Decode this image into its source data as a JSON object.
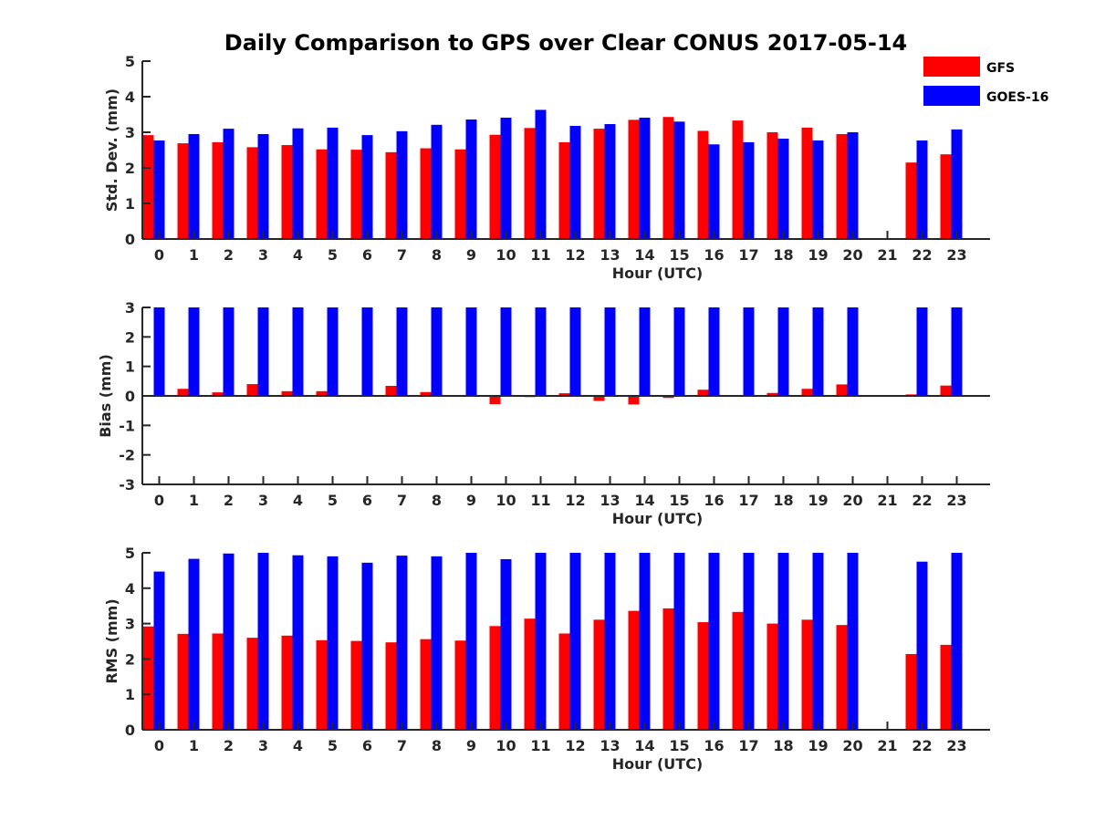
{
  "chart_data": {
    "type": "bar",
    "title": "Daily Comparison to GPS over Clear CONUS 2017-05-14",
    "legend": {
      "placement": "top-right",
      "entries": [
        {
          "name": "GFS",
          "color": "#ff0000"
        },
        {
          "name": "GOES-16",
          "color": "#0000ff"
        }
      ]
    },
    "categories": [
      "0",
      "1",
      "2",
      "3",
      "4",
      "5",
      "6",
      "7",
      "8",
      "9",
      "10",
      "11",
      "12",
      "13",
      "14",
      "15",
      "16",
      "17",
      "18",
      "19",
      "20",
      "21",
      "22",
      "23"
    ],
    "panels": [
      {
        "id": "std",
        "xlabel": "Hour (UTC)",
        "ylabel": "Std. Dev. (mm)",
        "ylim": [
          0,
          5
        ],
        "yticks": [
          0,
          1,
          2,
          3,
          4,
          5
        ],
        "ytick_labels": [
          "0",
          "1",
          "2",
          "3",
          "4",
          "5"
        ],
        "series": [
          {
            "name": "GFS",
            "color": "#ff0000",
            "values": [
              2.92,
              2.69,
              2.72,
              2.58,
              2.64,
              2.52,
              2.51,
              2.44,
              2.55,
              2.52,
              2.93,
              3.12,
              2.72,
              3.1,
              3.35,
              3.43,
              3.04,
              3.33,
              3.0,
              3.13,
              2.95,
              null,
              2.15,
              2.38
            ]
          },
          {
            "name": "GOES-16",
            "color": "#0000ff",
            "values": [
              2.77,
              2.95,
              3.1,
              2.95,
              3.11,
              3.13,
              2.92,
              3.03,
              3.21,
              3.36,
              3.41,
              3.63,
              3.18,
              3.23,
              3.41,
              3.3,
              2.66,
              2.72,
              2.82,
              2.77,
              3.0,
              null,
              2.77,
              3.08
            ]
          }
        ]
      },
      {
        "id": "bias",
        "xlabel": "Hour (UTC)",
        "ylabel": "Bias (mm)",
        "ylim": [
          -3,
          3
        ],
        "yticks": [
          -3,
          -2,
          -1,
          0,
          1,
          2,
          3
        ],
        "ytick_labels": [
          "-3",
          "-2",
          "-1",
          "0",
          "1",
          "2",
          "3"
        ],
        "series": [
          {
            "name": "GFS",
            "color": "#ff0000",
            "values": [
              0.0,
              0.24,
              0.12,
              0.4,
              0.16,
              0.16,
              0.02,
              0.34,
              0.13,
              0.0,
              -0.28,
              -0.04,
              0.09,
              -0.17,
              -0.29,
              -0.07,
              0.21,
              0.02,
              0.1,
              0.24,
              0.39,
              null,
              0.05,
              0.35
            ]
          },
          {
            "name": "GOES-16",
            "color": "#0000ff",
            "values": [
              3.0,
              3.0,
              3.0,
              3.0,
              3.0,
              3.0,
              3.0,
              3.0,
              3.0,
              3.0,
              3.0,
              3.0,
              3.0,
              3.0,
              3.0,
              3.0,
              3.0,
              3.0,
              3.0,
              3.0,
              3.0,
              null,
              3.0,
              3.0
            ]
          }
        ]
      },
      {
        "id": "rms",
        "xlabel": "Hour (UTC)",
        "ylabel": "RMS (mm)",
        "ylim": [
          0,
          5
        ],
        "yticks": [
          0,
          1,
          2,
          3,
          4,
          5
        ],
        "ytick_labels": [
          "0",
          "1",
          "2",
          "3",
          "4",
          "5"
        ],
        "series": [
          {
            "name": "GFS",
            "color": "#ff0000",
            "values": [
              2.92,
              2.71,
              2.72,
              2.6,
              2.66,
              2.53,
              2.51,
              2.47,
              2.56,
              2.52,
              2.93,
              3.14,
              2.72,
              3.11,
              3.36,
              3.43,
              3.04,
              3.33,
              3.0,
              3.11,
              2.96,
              null,
              2.14,
              2.4
            ]
          },
          {
            "name": "GOES-16",
            "color": "#0000ff",
            "values": [
              4.47,
              4.83,
              4.98,
              5.0,
              4.93,
              4.9,
              4.72,
              4.92,
              4.9,
              5.0,
              4.82,
              5.0,
              5.0,
              5.0,
              5.0,
              5.0,
              5.0,
              5.0,
              5.0,
              5.0,
              5.0,
              null,
              4.75,
              5.0
            ]
          }
        ]
      }
    ]
  }
}
